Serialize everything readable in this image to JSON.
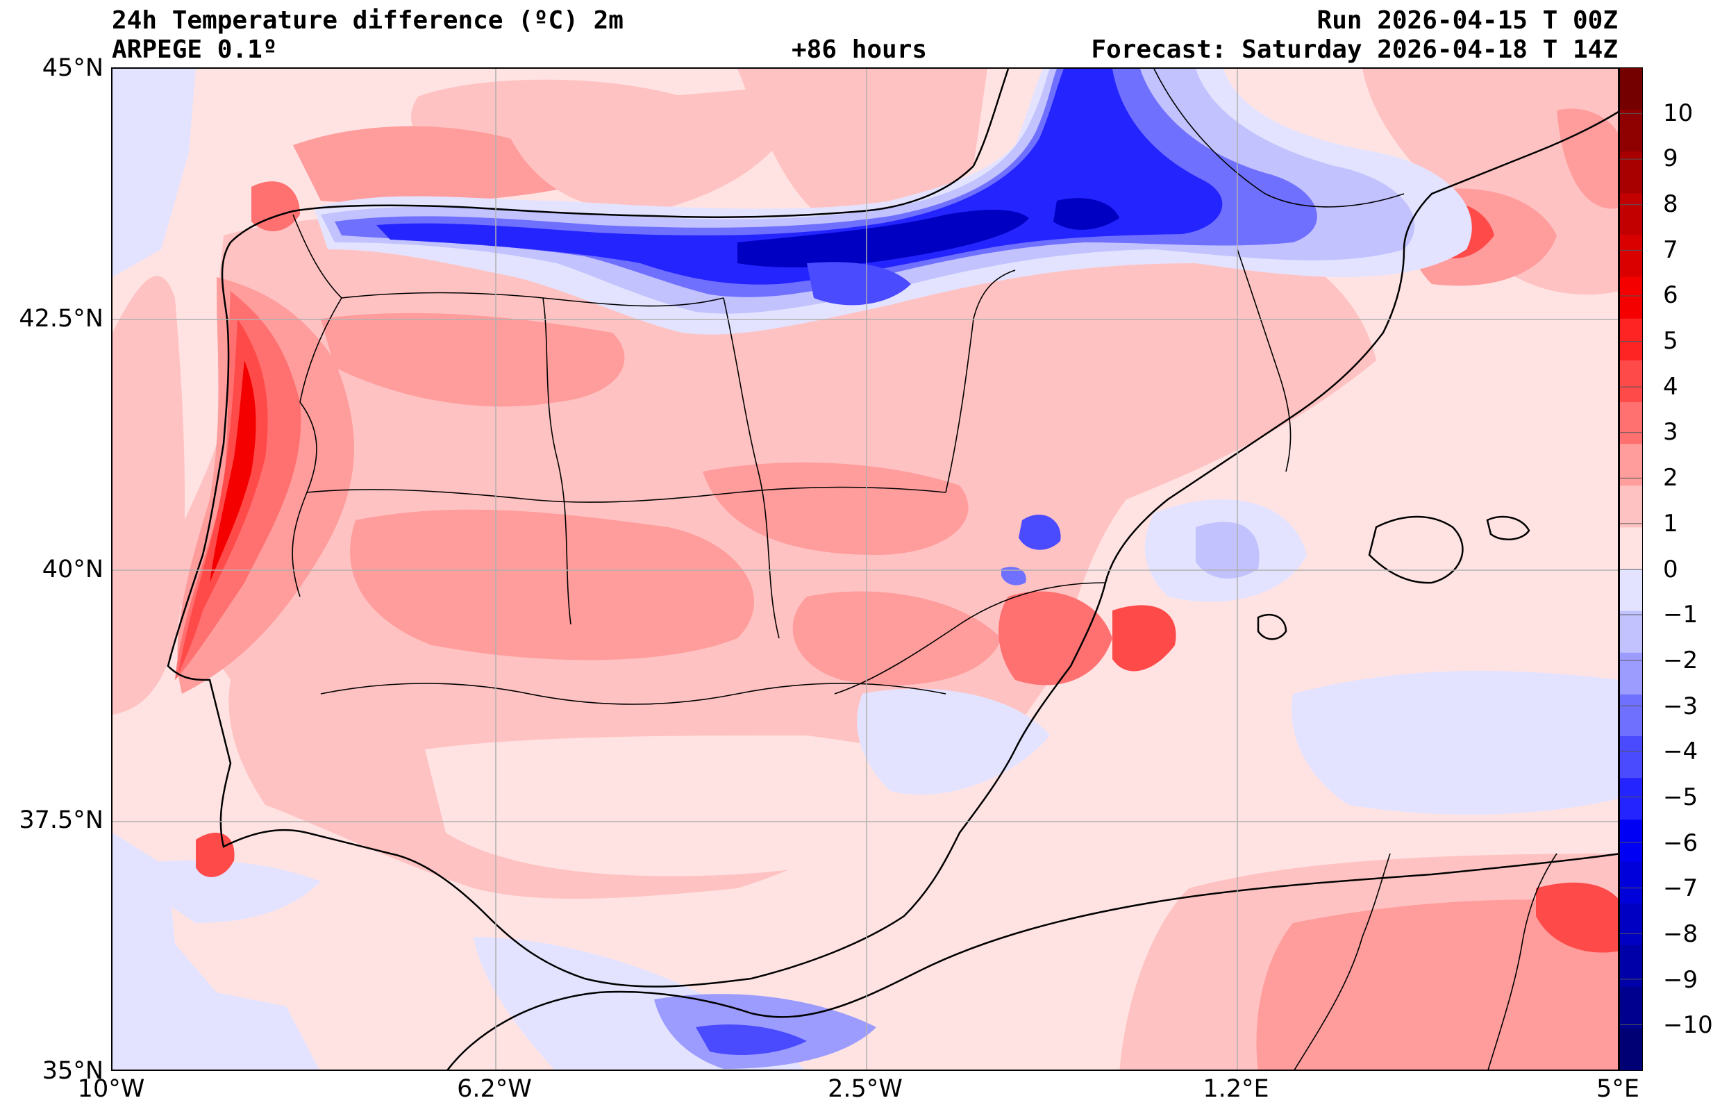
{
  "header": {
    "title": "24h Temperature difference (ºC) 2m",
    "model": "ARPEGE 0.1º",
    "lead": "+86 hours",
    "run": "Run 2026-04-15 T 00Z",
    "forecast": "Forecast: Saturday 2026-04-18 T 14Z"
  },
  "axes": {
    "lat_labels": [
      "45°N",
      "42.5°N",
      "40°N",
      "37.5°N",
      "35°N"
    ],
    "lon_labels": [
      "10°W",
      "6.2°W",
      "2.5°W",
      "1.2°E",
      "5°E"
    ],
    "lat_range": [
      35,
      45
    ],
    "lon_range": [
      -10,
      5
    ]
  },
  "colorbar": {
    "labels": [
      "10",
      "9",
      "8",
      "7",
      "6",
      "5",
      "4",
      "3",
      "2",
      "1",
      "0",
      "−1",
      "−2",
      "−3",
      "−4",
      "−5",
      "−6",
      "−7",
      "−8",
      "−9",
      "−10"
    ],
    "range": [
      -11,
      11
    ],
    "colors": [
      "#750000",
      "#8f0000",
      "#a80000",
      "#c20000",
      "#db0000",
      "#f50000",
      "#ff2424",
      "#ff4a4a",
      "#ff7070",
      "#ff9c9c",
      "#ffc2c2",
      "#ffe3e3",
      "#e3e3ff",
      "#c2c2ff",
      "#9c9cff",
      "#7070ff",
      "#4a4aff",
      "#2424ff",
      "#0000f5",
      "#0000db",
      "#0000c2",
      "#0000a8",
      "#00008f",
      "#000075"
    ]
  },
  "colors": {
    "ocean_base": "#ffe3e3",
    "coast": "#000000",
    "grid": "#b0b0b0"
  }
}
